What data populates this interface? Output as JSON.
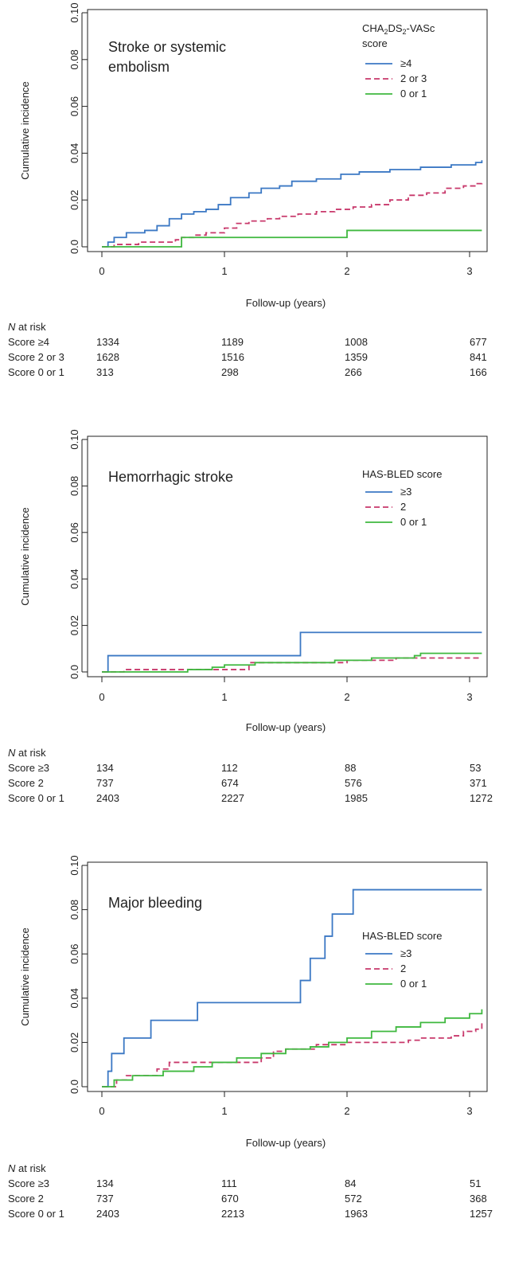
{
  "chart_data": [
    {
      "type": "line",
      "title_lines": [
        "Stroke or systemic",
        "embolism"
      ],
      "xlabel": "Follow-up (years)",
      "ylabel": "Cumulative incidence",
      "xlim": [
        0,
        3.1
      ],
      "ylim": [
        0,
        0.1
      ],
      "x_ticks": [
        "0",
        "1",
        "2",
        "3"
      ],
      "y_ticks": [
        "0.0",
        "0.02",
        "0.04",
        "0.06",
        "0.08",
        "0.10"
      ],
      "legend_title_html": "CHA<tspan dy='3' font-size='9'>2</tspan><tspan dy='-3'>DS</tspan><tspan dy='3' font-size='9'>2</tspan><tspan dy='-3'>-VASc</tspan>",
      "legend_title_plain": "CHA2DS2-VASc",
      "legend_title_line2": "score",
      "legend_position": "top-right",
      "series": [
        {
          "name": "≥4",
          "color": "#3b78c4",
          "dash": "none",
          "points": [
            [
              0,
              0
            ],
            [
              0.05,
              0.002
            ],
            [
              0.1,
              0.004
            ],
            [
              0.2,
              0.006
            ],
            [
              0.35,
              0.007
            ],
            [
              0.45,
              0.009
            ],
            [
              0.55,
              0.012
            ],
            [
              0.65,
              0.014
            ],
            [
              0.75,
              0.015
            ],
            [
              0.85,
              0.016
            ],
            [
              0.95,
              0.018
            ],
            [
              1.05,
              0.021
            ],
            [
              1.2,
              0.023
            ],
            [
              1.3,
              0.025
            ],
            [
              1.45,
              0.026
            ],
            [
              1.55,
              0.028
            ],
            [
              1.75,
              0.029
            ],
            [
              1.95,
              0.031
            ],
            [
              2.1,
              0.032
            ],
            [
              2.35,
              0.033
            ],
            [
              2.6,
              0.034
            ],
            [
              2.85,
              0.035
            ],
            [
              3.05,
              0.036
            ],
            [
              3.1,
              0.037
            ]
          ]
        },
        {
          "name": "2 or 3",
          "color": "#c8386b",
          "dash": "7,4",
          "points": [
            [
              0,
              0
            ],
            [
              0.1,
              0.001
            ],
            [
              0.3,
              0.002
            ],
            [
              0.6,
              0.003
            ],
            [
              0.65,
              0.004
            ],
            [
              0.75,
              0.005
            ],
            [
              0.85,
              0.006
            ],
            [
              1.0,
              0.008
            ],
            [
              1.1,
              0.01
            ],
            [
              1.2,
              0.011
            ],
            [
              1.35,
              0.012
            ],
            [
              1.45,
              0.013
            ],
            [
              1.6,
              0.014
            ],
            [
              1.75,
              0.015
            ],
            [
              1.9,
              0.016
            ],
            [
              2.05,
              0.017
            ],
            [
              2.2,
              0.018
            ],
            [
              2.35,
              0.02
            ],
            [
              2.5,
              0.022
            ],
            [
              2.65,
              0.023
            ],
            [
              2.8,
              0.025
            ],
            [
              2.95,
              0.026
            ],
            [
              3.05,
              0.027
            ],
            [
              3.1,
              0.028
            ]
          ]
        },
        {
          "name": "0 or 1",
          "color": "#3fb83f",
          "dash": "none",
          "points": [
            [
              0,
              0
            ],
            [
              0.65,
              0.0
            ],
            [
              0.65,
              0.004
            ],
            [
              2.0,
              0.004
            ],
            [
              2.0,
              0.007
            ],
            [
              3.1,
              0.007
            ]
          ]
        }
      ],
      "risk_table": {
        "header_italic": "N",
        "header_rest": " at risk",
        "rows": [
          {
            "label": "Score ≥4",
            "values": [
              "1334",
              "1189",
              "1008",
              "677"
            ]
          },
          {
            "label": "Score 2 or 3",
            "values": [
              "1628",
              "1516",
              "1359",
              "841"
            ]
          },
          {
            "label": "Score 0 or 1",
            "values": [
              "313",
              "298",
              "266",
              "166"
            ]
          }
        ]
      }
    },
    {
      "type": "line",
      "title_lines": [
        "Hemorrhagic stroke"
      ],
      "xlabel": "Follow-up (years)",
      "ylabel": "Cumulative incidence",
      "xlim": [
        0,
        3.1
      ],
      "ylim": [
        0,
        0.1
      ],
      "x_ticks": [
        "0",
        "1",
        "2",
        "3"
      ],
      "y_ticks": [
        "0.0",
        "0.02",
        "0.04",
        "0.06",
        "0.08",
        "0.10"
      ],
      "legend_title_plain": "HAS-BLED score",
      "legend_position": "top-right",
      "series": [
        {
          "name": "≥3",
          "color": "#3b78c4",
          "dash": "none",
          "points": [
            [
              0,
              0
            ],
            [
              0.05,
              0.0
            ],
            [
              0.05,
              0.007
            ],
            [
              1.62,
              0.007
            ],
            [
              1.62,
              0.017
            ],
            [
              3.1,
              0.017
            ]
          ]
        },
        {
          "name": "2",
          "color": "#c8386b",
          "dash": "7,4",
          "points": [
            [
              0,
              0
            ],
            [
              0.18,
              0.0
            ],
            [
              0.18,
              0.001
            ],
            [
              1.2,
              0.001
            ],
            [
              1.2,
              0.003
            ],
            [
              1.2,
              0.004
            ],
            [
              2.0,
              0.004
            ],
            [
              2.0,
              0.005
            ],
            [
              2.4,
              0.005
            ],
            [
              2.4,
              0.006
            ],
            [
              3.1,
              0.006
            ]
          ]
        },
        {
          "name": "0 or 1",
          "color": "#3fb83f",
          "dash": "none",
          "points": [
            [
              0,
              0
            ],
            [
              0.5,
              0.0
            ],
            [
              0.7,
              0.001
            ],
            [
              0.9,
              0.002
            ],
            [
              1.0,
              0.003
            ],
            [
              1.1,
              0.003
            ],
            [
              1.25,
              0.004
            ],
            [
              1.5,
              0.004
            ],
            [
              1.9,
              0.005
            ],
            [
              2.2,
              0.006
            ],
            [
              2.55,
              0.007
            ],
            [
              2.6,
              0.008
            ],
            [
              3.1,
              0.008
            ]
          ]
        }
      ],
      "risk_table": {
        "header_italic": "N",
        "header_rest": " at risk",
        "rows": [
          {
            "label": "Score ≥3",
            "values": [
              "134",
              "112",
              "88",
              "53"
            ]
          },
          {
            "label": "Score 2",
            "values": [
              "737",
              "674",
              "576",
              "371"
            ]
          },
          {
            "label": "Score 0 or 1",
            "values": [
              "2403",
              "2227",
              "1985",
              "1272"
            ]
          }
        ]
      }
    },
    {
      "type": "line",
      "title_lines": [
        "Major bleeding"
      ],
      "xlabel": "Follow-up (years)",
      "ylabel": "Cumulative incidence",
      "xlim": [
        0,
        3.1
      ],
      "ylim": [
        0,
        0.1
      ],
      "x_ticks": [
        "0",
        "1",
        "2",
        "3"
      ],
      "y_ticks": [
        "0.0",
        "0.02",
        "0.04",
        "0.06",
        "0.08",
        "0.10"
      ],
      "legend_title_plain": "HAS-BLED score",
      "legend_position": "center-right",
      "series": [
        {
          "name": "≥3",
          "color": "#3b78c4",
          "dash": "none",
          "points": [
            [
              0,
              0
            ],
            [
              0.05,
              0.0
            ],
            [
              0.05,
              0.007
            ],
            [
              0.08,
              0.007
            ],
            [
              0.08,
              0.015
            ],
            [
              0.18,
              0.015
            ],
            [
              0.18,
              0.022
            ],
            [
              0.4,
              0.022
            ],
            [
              0.4,
              0.03
            ],
            [
              0.78,
              0.03
            ],
            [
              0.78,
              0.038
            ],
            [
              1.62,
              0.038
            ],
            [
              1.62,
              0.048
            ],
            [
              1.7,
              0.048
            ],
            [
              1.7,
              0.058
            ],
            [
              1.82,
              0.058
            ],
            [
              1.82,
              0.068
            ],
            [
              1.88,
              0.068
            ],
            [
              1.88,
              0.078
            ],
            [
              2.05,
              0.078
            ],
            [
              2.05,
              0.089
            ],
            [
              3.1,
              0.089
            ]
          ]
        },
        {
          "name": "2",
          "color": "#c8386b",
          "dash": "7,4",
          "points": [
            [
              0,
              0
            ],
            [
              0.12,
              0.0
            ],
            [
              0.12,
              0.003
            ],
            [
              0.2,
              0.005
            ],
            [
              0.4,
              0.005
            ],
            [
              0.45,
              0.008
            ],
            [
              0.55,
              0.008
            ],
            [
              0.55,
              0.011
            ],
            [
              0.8,
              0.011
            ],
            [
              1.3,
              0.011
            ],
            [
              1.3,
              0.013
            ],
            [
              1.4,
              0.013
            ],
            [
              1.4,
              0.016
            ],
            [
              1.5,
              0.017
            ],
            [
              1.75,
              0.017
            ],
            [
              1.75,
              0.019
            ],
            [
              2.0,
              0.02
            ],
            [
              2.5,
              0.021
            ],
            [
              2.6,
              0.022
            ],
            [
              2.85,
              0.023
            ],
            [
              2.95,
              0.025
            ],
            [
              3.05,
              0.026
            ],
            [
              3.1,
              0.03
            ]
          ]
        },
        {
          "name": "0 or 1",
          "color": "#3fb83f",
          "dash": "none",
          "points": [
            [
              0,
              0
            ],
            [
              0.1,
              0.003
            ],
            [
              0.25,
              0.005
            ],
            [
              0.5,
              0.007
            ],
            [
              0.75,
              0.009
            ],
            [
              0.9,
              0.011
            ],
            [
              1.1,
              0.013
            ],
            [
              1.3,
              0.015
            ],
            [
              1.5,
              0.017
            ],
            [
              1.7,
              0.018
            ],
            [
              1.85,
              0.02
            ],
            [
              2.0,
              0.022
            ],
            [
              2.2,
              0.025
            ],
            [
              2.4,
              0.027
            ],
            [
              2.6,
              0.029
            ],
            [
              2.8,
              0.031
            ],
            [
              3.0,
              0.033
            ],
            [
              3.1,
              0.035
            ]
          ]
        }
      ],
      "risk_table": {
        "header_italic": "N",
        "header_rest": " at risk",
        "rows": [
          {
            "label": "Score ≥3",
            "values": [
              "134",
              "111",
              "84",
              "51"
            ]
          },
          {
            "label": "Score 2",
            "values": [
              "737",
              "670",
              "572",
              "368"
            ]
          },
          {
            "label": "Score 0 or 1",
            "values": [
              "2403",
              "2213",
              "1963",
              "1257"
            ]
          }
        ]
      }
    }
  ]
}
